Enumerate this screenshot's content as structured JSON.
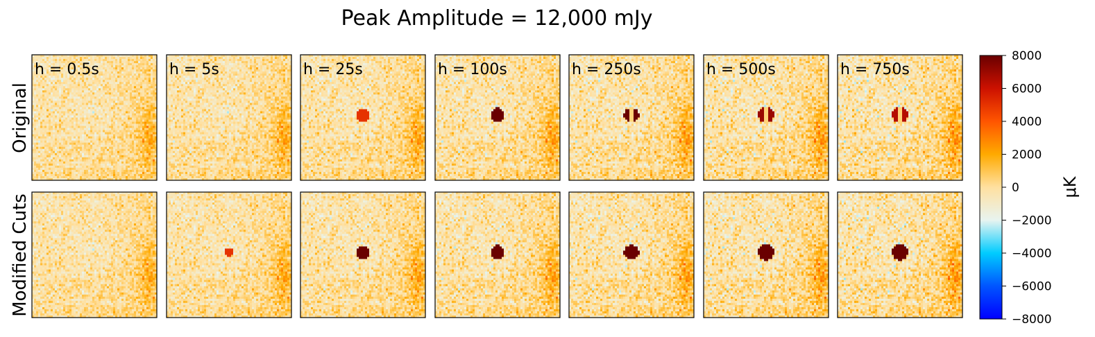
{
  "chart_data": {
    "type": "heatmap",
    "title": "Peak Amplitude = 12,000 mJy",
    "row_labels": [
      "Original",
      "Modified Cuts"
    ],
    "panel_labels": [
      "h = 0.5s",
      "h = 5s",
      "h = 25s",
      "h = 100s",
      "h = 250s",
      "h = 500s",
      "h = 750s"
    ],
    "panel_h_seconds": [
      0.5,
      5,
      25,
      100,
      250,
      500,
      750
    ],
    "colorbar": {
      "label": "μK",
      "vmin": -8000,
      "vmax": 8000,
      "ticks": [
        8000,
        6000,
        4000,
        2000,
        0,
        -2000,
        -4000,
        -6000,
        -8000
      ],
      "tick_labels": [
        "8000",
        "6000",
        "4000",
        "2000",
        "0",
        "−2000",
        "−4000",
        "−6000",
        "−8000"
      ],
      "colors": [
        "#0000ff",
        "#0055ff",
        "#00ccff",
        "#e8f4f0",
        "#ffe0a0",
        "#ffaa00",
        "#ff5500",
        "#cc1100",
        "#6a0000"
      ]
    },
    "source_amplitude_uK": {
      "Original": [
        0,
        0,
        5000,
        8000,
        8000,
        7000,
        6500
      ],
      "Modified Cuts": [
        0,
        5000,
        8000,
        8000,
        8000,
        8000,
        8000
      ]
    },
    "source_dipole": {
      "Original": [
        false,
        false,
        false,
        false,
        true,
        true,
        true
      ],
      "Modified Cuts": [
        false,
        false,
        false,
        false,
        false,
        false,
        false
      ]
    }
  }
}
